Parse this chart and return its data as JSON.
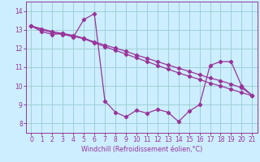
{
  "xlabel": "Windchill (Refroidissement éolien,°C)",
  "xlim": [
    -0.5,
    21.5
  ],
  "ylim": [
    7.5,
    14.5
  ],
  "xticks": [
    0,
    1,
    2,
    3,
    4,
    5,
    6,
    7,
    8,
    9,
    10,
    11,
    12,
    13,
    14,
    15,
    16,
    17,
    18,
    19,
    20,
    21
  ],
  "yticks": [
    8,
    9,
    10,
    11,
    12,
    13,
    14
  ],
  "bg_color": "#cceeff",
  "line_color": "#993399",
  "grid_color": "#99cccc",
  "line1_x": [
    0,
    1,
    2,
    3,
    4,
    5,
    6,
    7,
    8,
    9,
    10,
    11,
    12,
    13,
    14,
    15,
    16,
    17,
    18,
    19,
    20,
    21
  ],
  "line1_y": [
    13.2,
    12.9,
    12.75,
    12.8,
    12.6,
    13.55,
    13.85,
    9.2,
    8.6,
    8.35,
    8.7,
    8.55,
    8.75,
    8.6,
    8.1,
    8.65,
    9.0,
    11.1,
    11.3,
    11.3,
    10.0,
    9.5
  ],
  "line2_x": [
    0,
    1,
    2,
    3,
    4,
    5,
    6,
    7,
    8,
    9,
    10,
    11,
    12,
    13,
    14,
    15,
    16,
    17,
    18,
    19,
    20,
    21
  ],
  "line2_y": [
    13.2,
    13.05,
    12.9,
    12.8,
    12.7,
    12.55,
    12.35,
    12.18,
    12.02,
    11.85,
    11.65,
    11.48,
    11.3,
    11.12,
    10.95,
    10.78,
    10.6,
    10.42,
    10.28,
    10.1,
    9.9,
    9.5
  ],
  "line3_x": [
    0,
    1,
    2,
    3,
    4,
    5,
    6,
    7,
    8,
    9,
    10,
    11,
    12,
    13,
    14,
    15,
    16,
    17,
    18,
    19,
    20,
    21
  ],
  "line3_y": [
    13.2,
    13.0,
    12.85,
    12.75,
    12.65,
    12.52,
    12.3,
    12.1,
    11.9,
    11.7,
    11.5,
    11.3,
    11.1,
    10.9,
    10.7,
    10.52,
    10.35,
    10.15,
    10.0,
    9.82,
    9.65,
    9.48
  ]
}
